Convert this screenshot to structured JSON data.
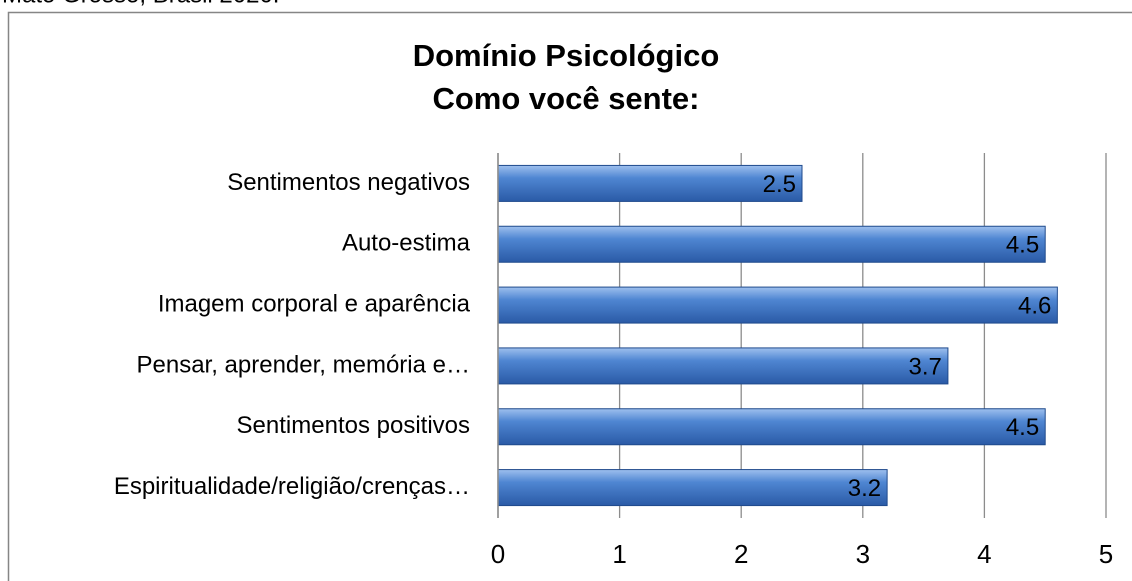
{
  "caption": "Mato Grosso, Brasil 2020.",
  "chart_data": {
    "type": "bar",
    "orientation": "horizontal",
    "title": [
      "Domínio Psicológico",
      "Como você sente:"
    ],
    "categories": [
      "Sentimentos negativos",
      "Auto-estima",
      "Imagem corporal e aparência",
      "Pensar, aprender, memória e…",
      "Sentimentos positivos",
      "Espiritualidade/religião/crenças…"
    ],
    "values": [
      2.5,
      4.5,
      4.6,
      3.7,
      4.5,
      3.2
    ],
    "color": "#3d72c0",
    "xlim": [
      0,
      5
    ],
    "xticks": [
      0,
      1,
      2,
      3,
      4,
      5
    ],
    "grid": true
  }
}
